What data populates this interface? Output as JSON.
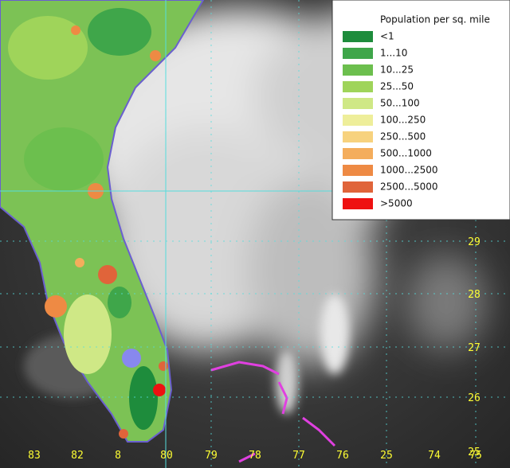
{
  "legend": {
    "title": "Population per sq. mile",
    "items": [
      {
        "label": "<1",
        "color": "#1e8c3c"
      },
      {
        "label": "1...10",
        "color": "#3fa64a"
      },
      {
        "label": "10...25",
        "color": "#6cbf4e"
      },
      {
        "label": "25...50",
        "color": "#9fd45a"
      },
      {
        "label": "50...100",
        "color": "#cfe886"
      },
      {
        "label": "100...250",
        "color": "#eeee9a"
      },
      {
        "label": "250...500",
        "color": "#f7d27e"
      },
      {
        "label": "500...1000",
        "color": "#f4ad5c"
      },
      {
        "label": "1000...2500",
        "color": "#ee8a44"
      },
      {
        "label": "2500...5000",
        "color": "#e0643a"
      },
      {
        "label": ">5000",
        "color": "#ee1111"
      }
    ]
  },
  "lat_labels": [
    "29",
    "28",
    "27",
    "26",
    "25"
  ],
  "lon_labels": [
    "83",
    "82",
    "8",
    "80",
    "79",
    "78",
    "77",
    "76",
    "25",
    "74",
    "75"
  ]
}
